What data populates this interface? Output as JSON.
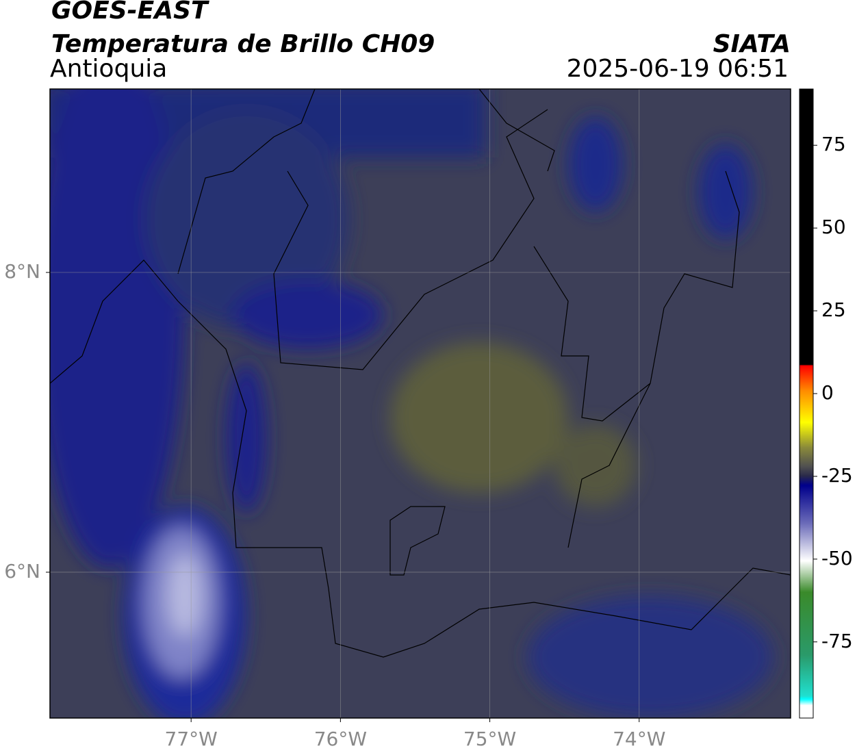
{
  "header": {
    "title": "GOES-EAST",
    "subtitle": "Temperatura de Brillo CH09",
    "region": "Antioquia",
    "agency": "SIATA",
    "datetime": "2025-06-19 06:51"
  },
  "map": {
    "xlim": [
      -77.945,
      -72.986
    ],
    "ylim": [
      5.027,
      9.224
    ],
    "xticks": [
      {
        "value": -77,
        "label": "77°W"
      },
      {
        "value": -76,
        "label": "76°W"
      },
      {
        "value": -75,
        "label": "75°W"
      },
      {
        "value": -74,
        "label": "74°W"
      }
    ],
    "yticks": [
      {
        "value": 8,
        "label": "8°N"
      },
      {
        "value": 6,
        "label": "6°N"
      }
    ],
    "grid": true
  },
  "colorbar": {
    "lim": [
      -98,
      92
    ],
    "ticks": [
      75,
      50,
      25,
      0,
      -25,
      -50,
      -75
    ]
  }
}
